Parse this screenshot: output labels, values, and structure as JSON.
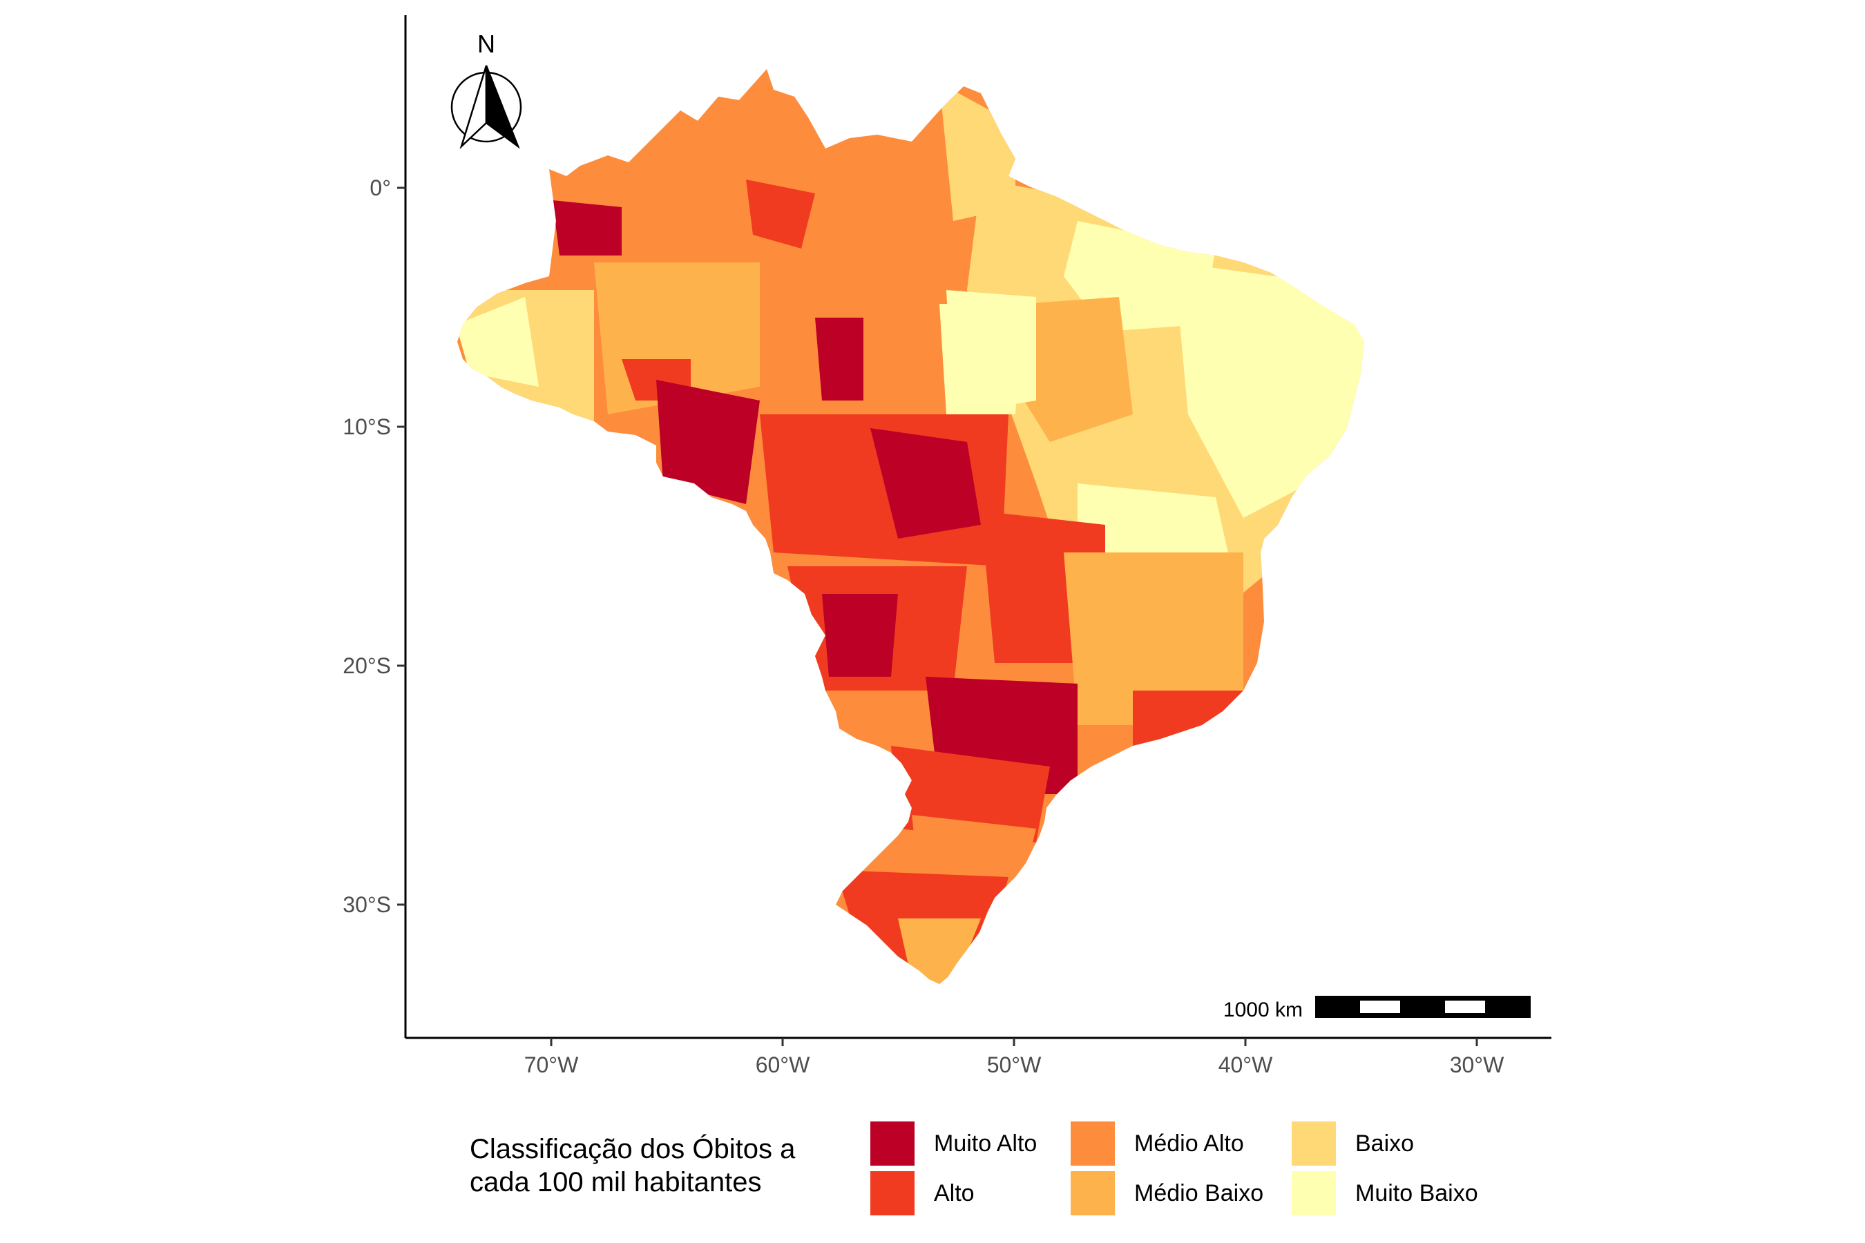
{
  "map": {
    "north_label": "N",
    "scale_label": "1000 km",
    "y_ticks": [
      "0°",
      "10°S",
      "20°S",
      "30°S"
    ],
    "x_ticks": [
      "70°W",
      "60°W",
      "50°W",
      "40°W",
      "30°W"
    ]
  },
  "legend": {
    "title_line1": "Classificação dos Óbitos a",
    "title_line2": "cada 100 mil habitantes",
    "items": [
      {
        "label": "Muito Alto",
        "color": "#bd0026"
      },
      {
        "label": "Alto",
        "color": "#f03b20"
      },
      {
        "label": "Médio Alto",
        "color": "#fd8d3c"
      },
      {
        "label": "Médio Baixo",
        "color": "#feb24c"
      },
      {
        "label": "Baixo",
        "color": "#fed976"
      },
      {
        "label": "Muito Baixo",
        "color": "#ffffb2"
      }
    ]
  }
}
